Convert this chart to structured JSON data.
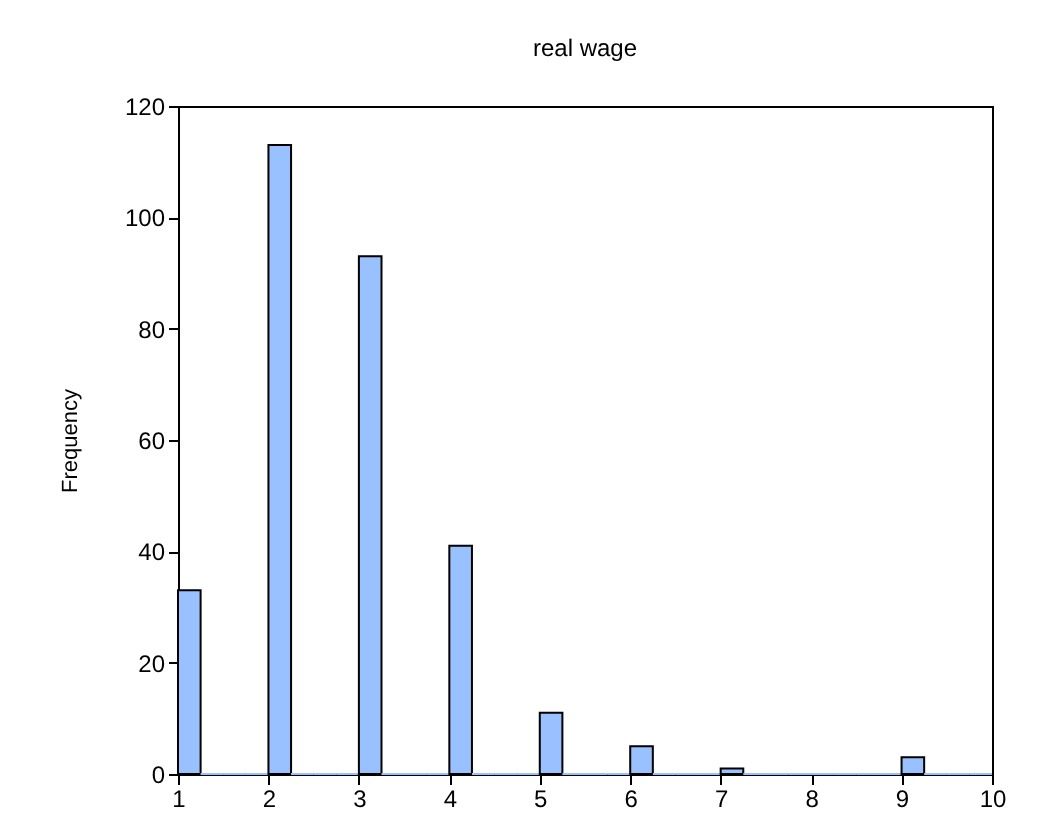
{
  "chart_data": {
    "type": "histogram",
    "title": "real wage",
    "ylabel": "Frequency",
    "bins": [
      1,
      1.25,
      1.5,
      1.75,
      2,
      2.25,
      2.5,
      2.75,
      3,
      3.25,
      3.5,
      3.75,
      4,
      4.25,
      4.5,
      4.75,
      5,
      5.25,
      5.5,
      5.75,
      6,
      6.25,
      6.5,
      6.75,
      7,
      7.25,
      7.5,
      7.75,
      8,
      8.25,
      8.5,
      8.75,
      9,
      9.25,
      9.5,
      9.75,
      10
    ],
    "values": [
      33,
      0,
      0,
      0,
      113,
      0,
      0,
      0,
      93,
      0,
      0,
      0,
      41,
      0,
      0,
      0,
      11,
      0,
      0,
      0,
      5,
      0,
      0,
      0,
      1,
      0,
      0,
      0,
      0,
      0,
      0,
      0,
      3,
      0,
      0,
      0
    ],
    "color": "#99c0ff",
    "xlim": [
      1,
      10
    ],
    "xticks": [
      1,
      2,
      3,
      4,
      5,
      6,
      7,
      8,
      9,
      10
    ],
    "ylim": [
      0,
      120
    ],
    "yticks": [
      0,
      20,
      40,
      60,
      80,
      100,
      120
    ],
    "grid": false
  }
}
